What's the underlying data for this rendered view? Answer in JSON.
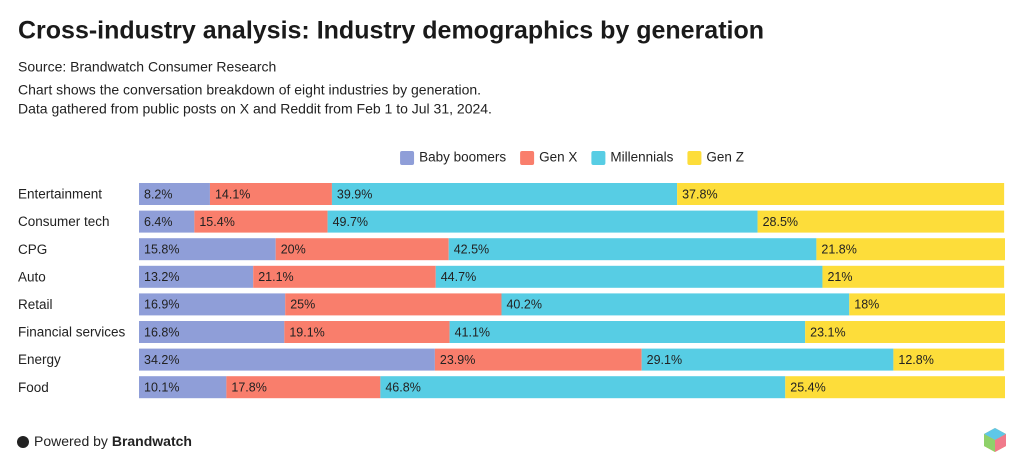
{
  "chart_data": {
    "type": "stacked-bar-horizontal",
    "title": "Cross-industry analysis: Industry demographics by generation",
    "source": "Source: Brandwatch Consumer Research",
    "subtitle": [
      "Chart shows the conversation breakdown of eight industries by generation.",
      "Data gathered from public posts on X and Reddit from Feb 1 to Jul 31, 2024."
    ],
    "categories": [
      "Entertainment",
      "Consumer tech",
      "CPG",
      "Auto",
      "Retail",
      "Financial services",
      "Energy",
      "Food"
    ],
    "series": [
      {
        "name": "Baby boomers",
        "color": "#8f9ed8",
        "values": [
          8.2,
          6.4,
          15.8,
          13.2,
          16.9,
          16.8,
          34.2,
          10.1
        ],
        "value_labels": [
          "8.2%",
          "6.4%",
          "15.8%",
          "13.2%",
          "16.9%",
          "16.8%",
          "34.2%",
          "10.1%"
        ]
      },
      {
        "name": "Gen X",
        "color": "#f97e6c",
        "values": [
          14.1,
          15.4,
          20,
          21.1,
          25,
          19.1,
          23.9,
          17.8
        ],
        "value_labels": [
          "14.1%",
          "15.4%",
          "20%",
          "21.1%",
          "25%",
          "19.1%",
          "23.9%",
          "17.8%"
        ]
      },
      {
        "name": "Millennials",
        "color": "#57cde4",
        "values": [
          39.9,
          49.7,
          42.5,
          44.7,
          40.2,
          41.1,
          29.1,
          46.8
        ],
        "value_labels": [
          "39.9%",
          "49.7%",
          "42.5%",
          "44.7%",
          "40.2%",
          "41.1%",
          "29.1%",
          "46.8%"
        ]
      },
      {
        "name": "Gen Z",
        "color": "#fddd3a",
        "values": [
          37.8,
          28.5,
          21.8,
          21,
          18,
          23.1,
          12.8,
          25.4
        ],
        "value_labels": [
          "37.8%",
          "28.5%",
          "21.8%",
          "21%",
          "18%",
          "23.1%",
          "12.8%",
          "25.4%"
        ]
      }
    ]
  },
  "footer": {
    "prefix": "Powered by",
    "brand": "Brandwatch"
  }
}
